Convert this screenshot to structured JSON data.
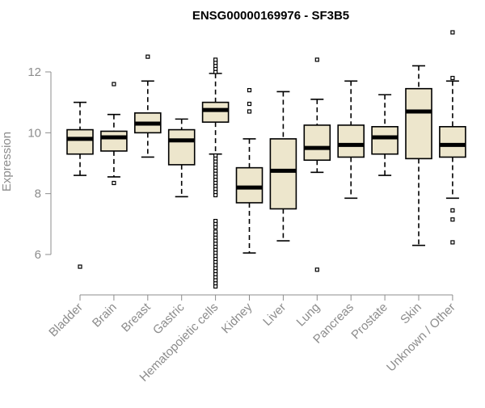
{
  "chart_data": {
    "type": "box",
    "title": "ENSG00000169976 - SF3B5",
    "xlabel": "",
    "ylabel": "Expression",
    "ylim": [
      4.8,
      13.6
    ],
    "yticks": [
      6,
      8,
      10,
      12
    ],
    "box_fill": "#ede6cc",
    "median_color": "#000000",
    "axis_color": "#8c8c8c",
    "categories": [
      "Bladder",
      "Brain",
      "Breast",
      "Gastric",
      "Hematopoietic cells",
      "Kidney",
      "Liver",
      "Lung",
      "Pancreas",
      "Prostate",
      "Skin",
      "Unknown / Other"
    ],
    "boxes": [
      {
        "name": "Bladder",
        "whisker_low": 8.6,
        "q1": 9.3,
        "median": 9.8,
        "q3": 10.1,
        "whisker_high": 11.0,
        "outliers": [
          5.6
        ]
      },
      {
        "name": "Brain",
        "whisker_low": 8.55,
        "q1": 9.4,
        "median": 9.85,
        "q3": 10.05,
        "whisker_high": 10.6,
        "outliers": [
          8.35,
          11.6
        ]
      },
      {
        "name": "Breast",
        "whisker_low": 9.2,
        "q1": 10.0,
        "median": 10.3,
        "q3": 10.65,
        "whisker_high": 11.7,
        "outliers": [
          12.5
        ]
      },
      {
        "name": "Gastric",
        "whisker_low": 7.9,
        "q1": 8.95,
        "median": 9.75,
        "q3": 10.1,
        "whisker_high": 10.45,
        "outliers": []
      },
      {
        "name": "Hematopoietic cells",
        "whisker_low": 9.3,
        "q1": 10.35,
        "median": 10.75,
        "q3": 11.0,
        "whisker_high": 11.95,
        "outliers": [
          12.0,
          12.1,
          12.2,
          12.3,
          12.4,
          9.25,
          9.15,
          9.05,
          8.95,
          8.85,
          8.75,
          8.65,
          8.55,
          8.45,
          8.35,
          8.25,
          8.15,
          8.05,
          7.95,
          7.1,
          7.0,
          6.9,
          6.75,
          6.65,
          6.55,
          6.45,
          6.35,
          6.25,
          6.15,
          6.05,
          5.95,
          5.85,
          5.75,
          5.65,
          5.55,
          5.45,
          5.35,
          5.25,
          5.15,
          5.05,
          4.95
        ]
      },
      {
        "name": "Kidney",
        "whisker_low": 6.05,
        "q1": 7.7,
        "median": 8.2,
        "q3": 8.85,
        "whisker_high": 9.8,
        "outliers": [
          10.7,
          10.95,
          11.4
        ]
      },
      {
        "name": "Liver",
        "whisker_low": 6.45,
        "q1": 7.5,
        "median": 8.75,
        "q3": 9.8,
        "whisker_high": 11.35,
        "outliers": []
      },
      {
        "name": "Lung",
        "whisker_low": 8.7,
        "q1": 9.1,
        "median": 9.5,
        "q3": 10.25,
        "whisker_high": 11.1,
        "outliers": [
          5.5,
          12.4
        ]
      },
      {
        "name": "Pancreas",
        "whisker_low": 7.85,
        "q1": 9.2,
        "median": 9.6,
        "q3": 10.25,
        "whisker_high": 11.7,
        "outliers": []
      },
      {
        "name": "Prostate",
        "whisker_low": 8.6,
        "q1": 9.3,
        "median": 9.85,
        "q3": 10.2,
        "whisker_high": 11.25,
        "outliers": []
      },
      {
        "name": "Skin",
        "whisker_low": 6.3,
        "q1": 9.15,
        "median": 10.7,
        "q3": 11.45,
        "whisker_high": 12.2,
        "outliers": []
      },
      {
        "name": "Unknown / Other",
        "whisker_low": 7.85,
        "q1": 9.2,
        "median": 9.6,
        "q3": 10.2,
        "whisker_high": 11.7,
        "outliers": [
          6.4,
          7.15,
          7.45,
          11.8,
          13.3
        ]
      }
    ]
  }
}
